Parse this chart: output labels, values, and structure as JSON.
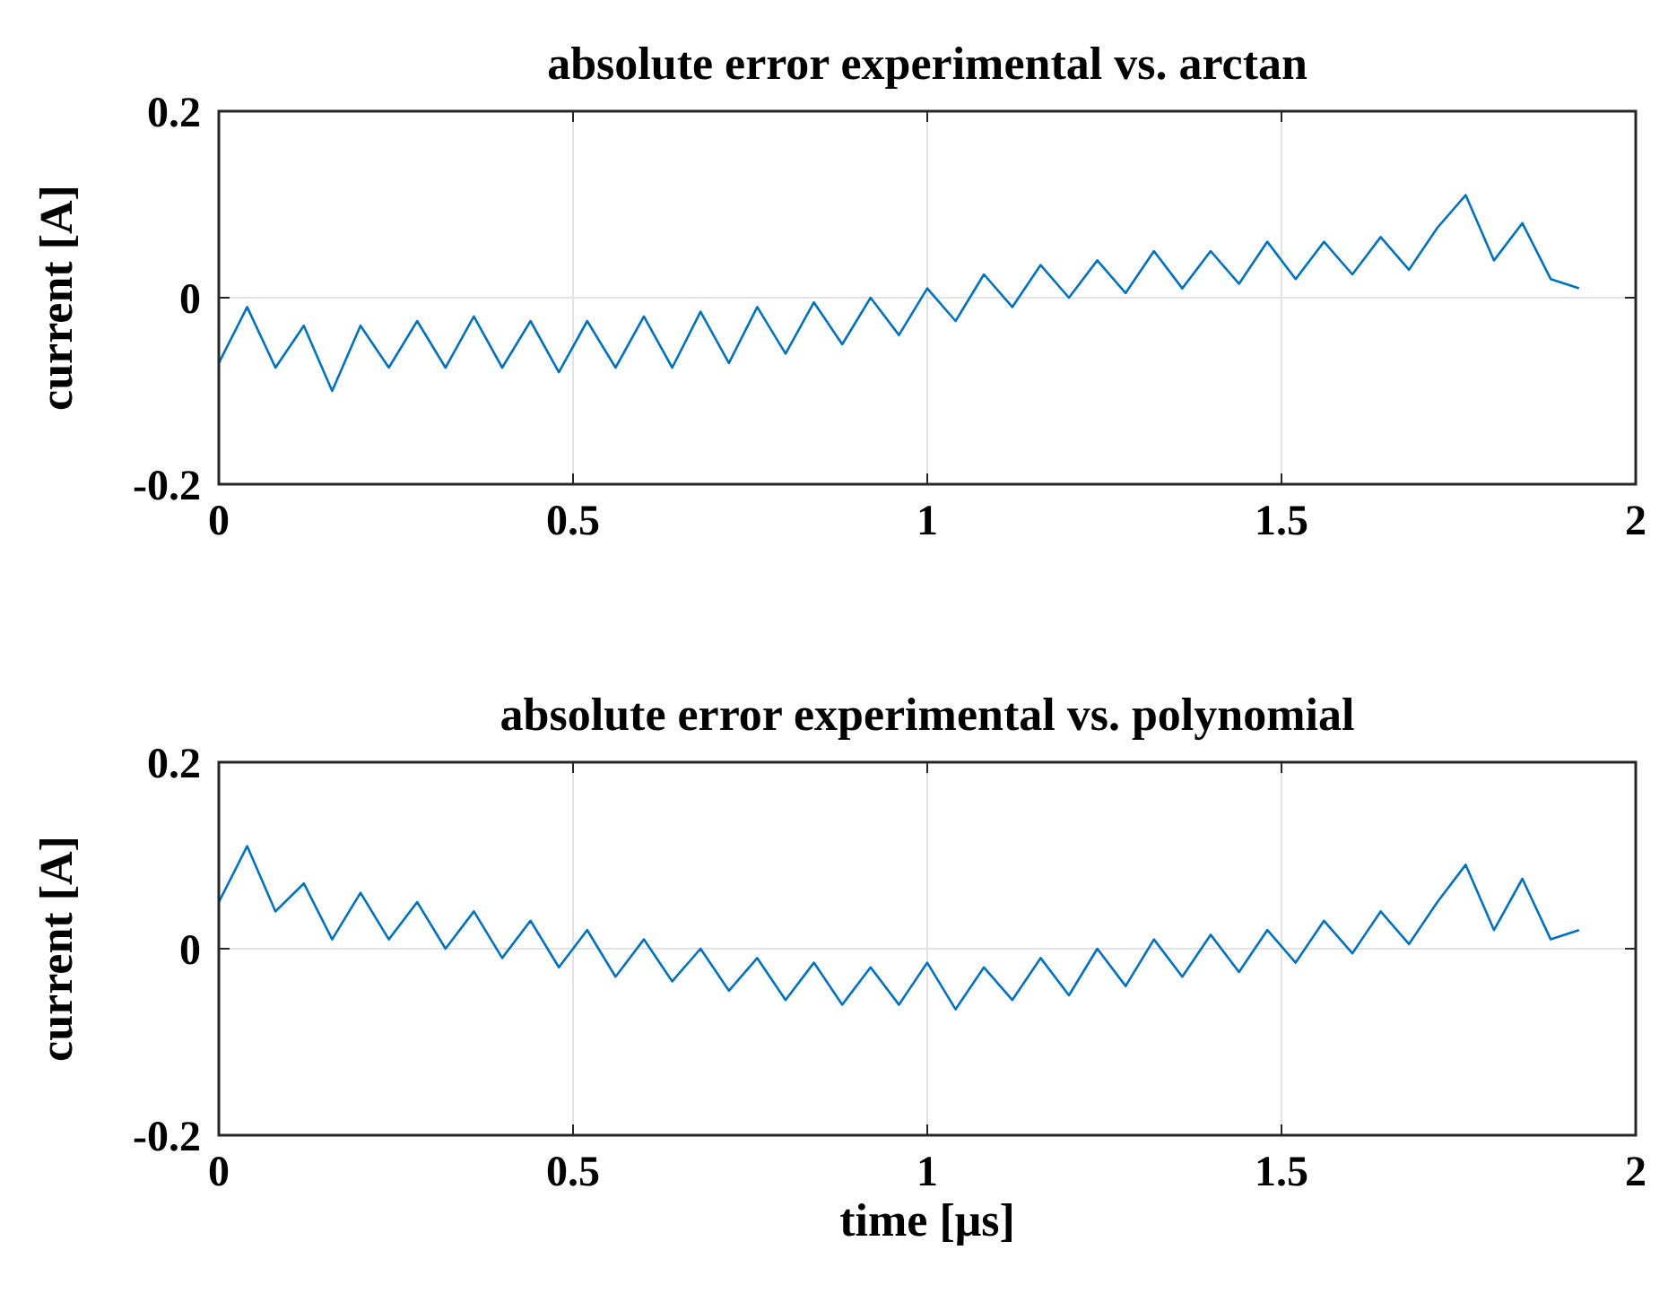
{
  "chart_data": [
    {
      "type": "line",
      "title": "absolute error experimental vs. arctan",
      "ylabel": "current [A]",
      "xlim": [
        0,
        2
      ],
      "xticks": [
        0,
        0.5,
        1,
        1.5,
        2
      ],
      "ylim": [
        -0.2,
        0.2
      ],
      "yticks": [
        -0.2,
        0,
        0.2
      ],
      "grid": true,
      "line_style": "solid",
      "marker": "none",
      "series": [
        {
          "color": "#0072bd",
          "x": [
            0,
            0.04,
            0.08,
            0.12,
            0.16,
            0.2,
            0.24,
            0.28,
            0.32,
            0.36,
            0.4,
            0.44,
            0.48,
            0.52,
            0.56,
            0.6,
            0.64,
            0.68,
            0.72,
            0.76,
            0.8,
            0.84,
            0.88,
            0.92,
            0.96,
            1.0,
            1.04,
            1.08,
            1.12,
            1.16,
            1.2,
            1.24,
            1.28,
            1.32,
            1.36,
            1.4,
            1.44,
            1.48,
            1.52,
            1.56,
            1.6,
            1.64,
            1.68,
            1.72,
            1.76,
            1.8,
            1.84,
            1.88,
            1.92
          ],
          "values": [
            -0.07,
            -0.01,
            -0.075,
            -0.03,
            -0.1,
            -0.03,
            -0.075,
            -0.025,
            -0.075,
            -0.02,
            -0.075,
            -0.025,
            -0.08,
            -0.025,
            -0.075,
            -0.02,
            -0.075,
            -0.015,
            -0.07,
            -0.01,
            -0.06,
            -0.005,
            -0.05,
            0.0,
            -0.04,
            0.01,
            -0.025,
            0.025,
            -0.01,
            0.035,
            0.0,
            0.04,
            0.005,
            0.05,
            0.01,
            0.05,
            0.015,
            0.06,
            0.02,
            0.06,
            0.025,
            0.065,
            0.03,
            0.075,
            0.11,
            0.04,
            0.08,
            0.02,
            0.01
          ]
        }
      ]
    },
    {
      "type": "line",
      "title": "absolute error experimental vs. polynomial",
      "xlabel": "time [μs]",
      "ylabel": "current [A]",
      "xlim": [
        0,
        2
      ],
      "xticks": [
        0,
        0.5,
        1,
        1.5,
        2
      ],
      "ylim": [
        -0.2,
        0.2
      ],
      "yticks": [
        -0.2,
        0,
        0.2
      ],
      "grid": true,
      "line_style": "solid",
      "marker": "none",
      "series": [
        {
          "color": "#0072bd",
          "x": [
            0,
            0.04,
            0.08,
            0.12,
            0.16,
            0.2,
            0.24,
            0.28,
            0.32,
            0.36,
            0.4,
            0.44,
            0.48,
            0.52,
            0.56,
            0.6,
            0.64,
            0.68,
            0.72,
            0.76,
            0.8,
            0.84,
            0.88,
            0.92,
            0.96,
            1.0,
            1.04,
            1.08,
            1.12,
            1.16,
            1.2,
            1.24,
            1.28,
            1.32,
            1.36,
            1.4,
            1.44,
            1.48,
            1.52,
            1.56,
            1.6,
            1.64,
            1.68,
            1.72,
            1.76,
            1.8,
            1.84,
            1.88,
            1.92
          ],
          "values": [
            0.05,
            0.11,
            0.04,
            0.07,
            0.01,
            0.06,
            0.01,
            0.05,
            0.0,
            0.04,
            -0.01,
            0.03,
            -0.02,
            0.02,
            -0.03,
            0.01,
            -0.035,
            0.0,
            -0.045,
            -0.01,
            -0.055,
            -0.015,
            -0.06,
            -0.02,
            -0.06,
            -0.015,
            -0.065,
            -0.02,
            -0.055,
            -0.01,
            -0.05,
            0.0,
            -0.04,
            0.01,
            -0.03,
            0.015,
            -0.025,
            0.02,
            -0.015,
            0.03,
            -0.005,
            0.04,
            0.005,
            0.05,
            0.09,
            0.02,
            0.075,
            0.01,
            0.02
          ]
        }
      ]
    }
  ]
}
